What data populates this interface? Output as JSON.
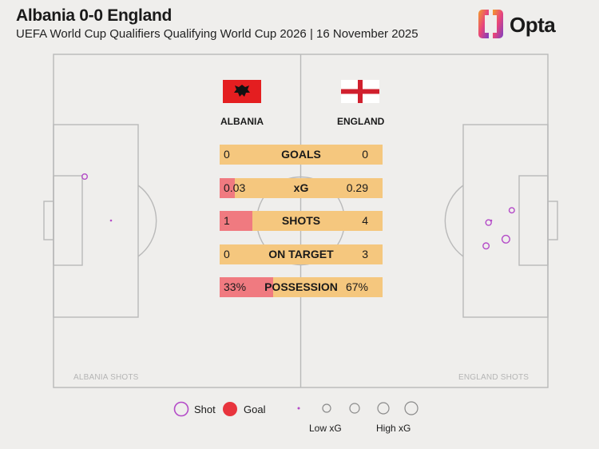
{
  "header": {
    "title": "Albania 0-0 England",
    "subtitle": "UEFA World Cup Qualifiers Qualifying World Cup 2026 | 16 November 2025",
    "brand": "Opta"
  },
  "teams": {
    "home": "ALBANIA",
    "away": "ENGLAND"
  },
  "stats": [
    {
      "label": "GOALS",
      "home": "0",
      "away": "0",
      "home_share": 0.0
    },
    {
      "label": "xG",
      "home": "0.03",
      "away": "0.29",
      "home_share": 0.094
    },
    {
      "label": "SHOTS",
      "home": "1",
      "away": "4",
      "home_share": 0.2
    },
    {
      "label": "ON TARGET",
      "home": "0",
      "away": "3",
      "home_share": 0.0
    },
    {
      "label": "POSSESSION",
      "home": "33%",
      "away": "67%",
      "home_share": 0.33
    }
  ],
  "pitch_labels": {
    "home": "ALBANIA SHOTS",
    "away": "ENGLAND SHOTS"
  },
  "legend": {
    "shot": "Shot",
    "goal": "Goal",
    "low_xg": "Low xG",
    "high_xg": "High xG"
  },
  "colors": {
    "background": "#efeeec",
    "pitch_lines": "#b9b9b9",
    "shot": "#b44bc8",
    "goal": "#e8343d",
    "home_bar": "#f07a80",
    "away_bar": "#f5c77e"
  },
  "chart_data": {
    "type": "scatter",
    "title": "Albania 0-0 England",
    "x_range": [
      0,
      100
    ],
    "y_range": [
      0,
      100
    ],
    "series": [
      {
        "name": "ALBANIA SHOTS",
        "points": [
          {
            "x": 93.7,
            "y": 63.3,
            "xg": 0.03,
            "goal": false
          }
        ]
      },
      {
        "name": "ENGLAND SHOTS",
        "points": [
          {
            "x": 87.5,
            "y": 42.5,
            "xg": 0.06,
            "goal": false
          },
          {
            "x": 88.0,
            "y": 49.5,
            "xg": 0.04,
            "goal": false
          },
          {
            "x": 91.5,
            "y": 44.5,
            "xg": 0.16,
            "goal": false
          },
          {
            "x": 92.7,
            "y": 53.2,
            "xg": 0.03,
            "goal": false
          }
        ]
      }
    ]
  }
}
